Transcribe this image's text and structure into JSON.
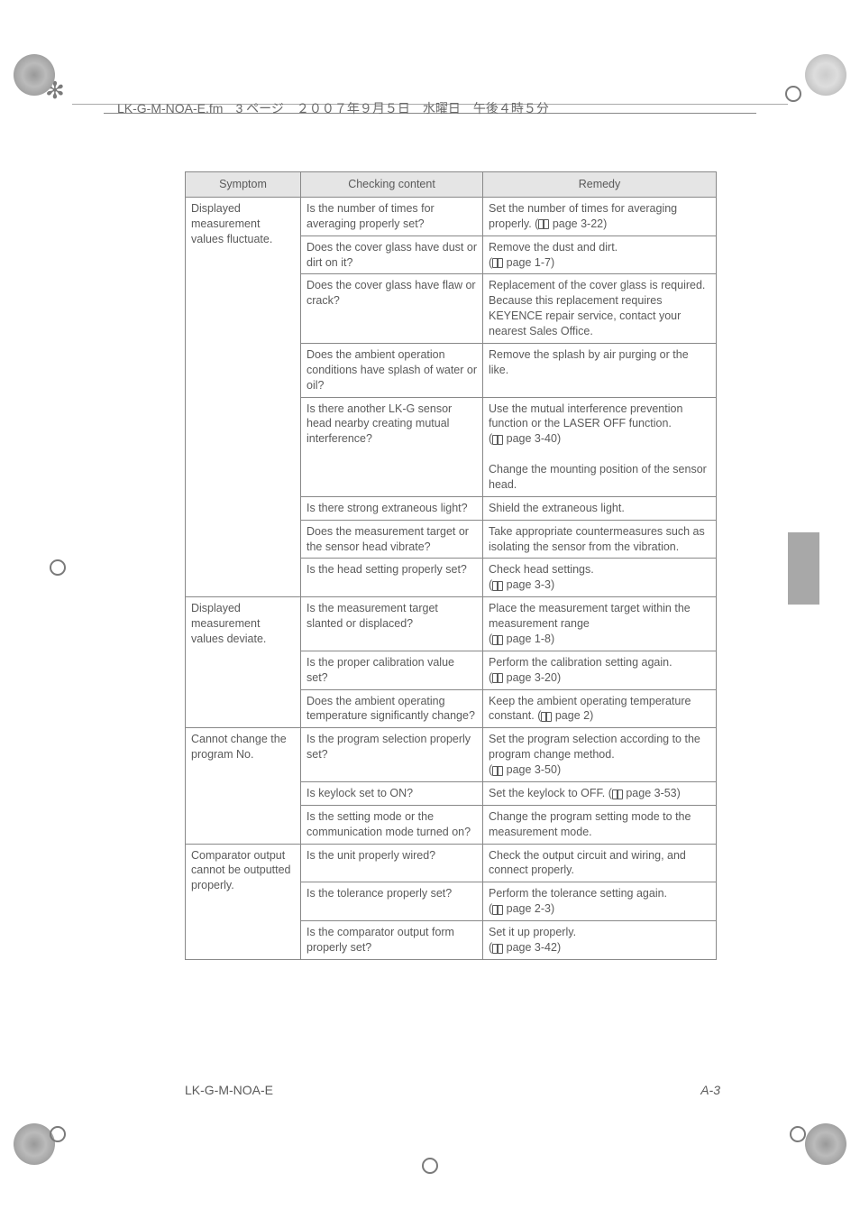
{
  "header": {
    "cropline": "LK-G-M-NOA-E.fm　3 ページ　２００７年９月５日　水曜日　午後４時５分"
  },
  "table": {
    "headers": [
      "Symptom",
      "Checking content",
      "Remedy"
    ],
    "groups": [
      {
        "symptom": "Displayed measurement values fluctuate.",
        "rows": [
          {
            "check": "Is the number of times for averaging properly set?",
            "remedy": "Set the number of times for averaging properly. (",
            "ref": " page 3-22)"
          },
          {
            "check": "Does the cover glass have dust or dirt on it?",
            "remedy": "Remove the dust and dirt.\n(",
            "ref": " page 1-7)"
          },
          {
            "check": "Does the cover glass have flaw or crack?",
            "remedy": "Replacement of the cover glass is required. Because this replacement requires KEYENCE repair service, contact your nearest Sales Office."
          },
          {
            "check": "Does the ambient operation conditions have splash of water or oil?",
            "remedy": "Remove the splash by air purging or the like."
          },
          {
            "check": "Is there another LK-G sensor head nearby creating mutual interference?",
            "remedy": "Use the mutual interference prevention function or the LASER OFF function.\n(",
            "ref": " page 3-40)",
            "extra": "\nChange the mounting position of the sensor head."
          },
          {
            "check": "Is there strong extraneous light?",
            "remedy": "Shield the extraneous light."
          },
          {
            "check": "Does the measurement target or the sensor head vibrate?",
            "remedy": "Take appropriate countermeasures such as isolating the sensor from the vibration."
          },
          {
            "check": "Is the head setting properly set?",
            "remedy": "Check head settings.\n(",
            "ref": " page 3-3)"
          }
        ]
      },
      {
        "symptom": "Displayed measurement values deviate.",
        "rows": [
          {
            "check": "Is the measurement target slanted or displaced?",
            "remedy": "Place the measurement target within the measurement range\n(",
            "ref": " page 1-8)"
          },
          {
            "check": "Is the proper calibration value set?",
            "remedy": "Perform the calibration setting again.\n(",
            "ref": " page 3-20)"
          },
          {
            "check": "Does the ambient operating temperature significantly change?",
            "remedy": "Keep the ambient operating temperature constant. (",
            "ref": " page 2)"
          }
        ]
      },
      {
        "symptom": "Cannot change the program No.",
        "rows": [
          {
            "check": "Is the program selection properly set?",
            "remedy": "Set the program selection according to the program change method.\n(",
            "ref": " page 3-50)"
          },
          {
            "check": "Is keylock set to ON?",
            "remedy": "Set the keylock to OFF. (",
            "ref": " page 3-53)"
          },
          {
            "check": "Is the setting mode or the communication mode turned on?",
            "remedy": "Change the program setting mode to the measurement mode."
          }
        ]
      },
      {
        "symptom": "Comparator output cannot be outputted properly.",
        "rows": [
          {
            "check": "Is the unit properly wired?",
            "remedy": "Check the output circuit and wiring, and connect properly."
          },
          {
            "check": "Is the tolerance properly set?",
            "remedy": "Perform the tolerance setting again.\n(",
            "ref": " page 2-3)"
          },
          {
            "check": "Is the comparator output form properly set?",
            "remedy": "Set it up properly.\n(",
            "ref": " page 3-42)"
          }
        ]
      }
    ]
  },
  "footer": {
    "model": "LK-G-M-NOA-E",
    "page": "A-3"
  }
}
